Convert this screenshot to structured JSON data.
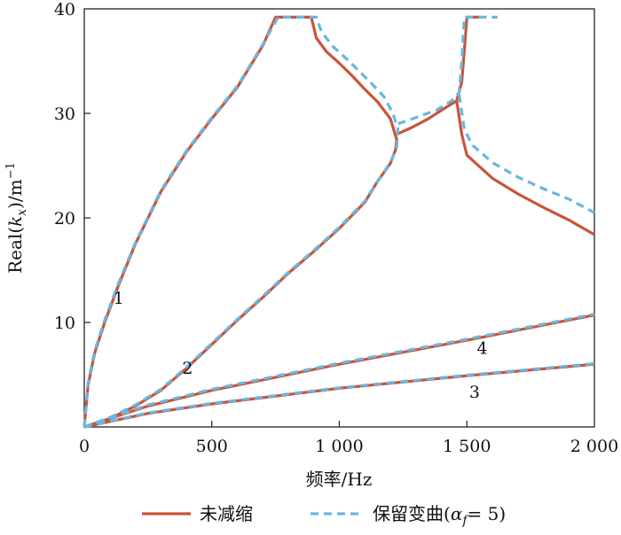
{
  "chart_data": {
    "type": "line",
    "xlabel": "频率/Hz",
    "ylabel_main": "Real(",
    "ylabel_k": "k",
    "ylabel_sub": "x",
    "ylabel_tail": ")/m",
    "ylabel_sup": "−1",
    "xlim": [
      0,
      2000
    ],
    "ylim": [
      0,
      40
    ],
    "xticks": [
      {
        "value": 0,
        "label": "0"
      },
      {
        "value": 500,
        "label": "500"
      },
      {
        "value": 1000,
        "label": "1 000"
      },
      {
        "value": 1500,
        "label": "1 500"
      },
      {
        "value": 2000,
        "label": "2 000"
      }
    ],
    "yticks": [
      {
        "value": 10,
        "label": "10"
      },
      {
        "value": 20,
        "label": "20"
      },
      {
        "value": 30,
        "label": "30"
      },
      {
        "value": 40,
        "label": "40"
      }
    ],
    "grid": false,
    "legend_position": "bottom",
    "legend": {
      "undamped": "未减缩",
      "retained_prefix": "保留变曲(",
      "retained_alpha": "α",
      "retained_sub": "f",
      "retained_suffix": "= 5)"
    },
    "colors": {
      "undamped": "#c8553a",
      "retained": "#6bb6df"
    },
    "curve_labels": [
      {
        "text": "1",
        "x": 135,
        "y": 11.8
      },
      {
        "text": "2",
        "x": 405,
        "y": 5.1
      },
      {
        "text": "4",
        "x": 1560,
        "y": 7.0
      },
      {
        "text": "3",
        "x": 1530,
        "y": 2.8
      }
    ],
    "series": [
      {
        "name": "未减缩",
        "curves": [
          [
            [
              0,
              0
            ],
            [
              15,
              4
            ],
            [
              40,
              7
            ],
            [
              80,
              10
            ],
            [
              130,
              13.3
            ],
            [
              200,
              17.5
            ],
            [
              300,
              22.5
            ],
            [
              400,
              26.3
            ],
            [
              500,
              29.5
            ],
            [
              600,
              32.5
            ],
            [
              700,
              36.5
            ],
            [
              750,
              39.2
            ],
            [
              890,
              39.2
            ],
            [
              910,
              37.2
            ],
            [
              950,
              35.9
            ],
            [
              1000,
              34.8
            ],
            [
              1050,
              33.6
            ],
            [
              1100,
              32.3
            ],
            [
              1150,
              31.1
            ],
            [
              1200,
              29.5
            ],
            [
              1225,
              27.5
            ],
            [
              1220,
              26.5
            ],
            [
              1200,
              25.2
            ],
            [
              1150,
              23.5
            ],
            [
              1100,
              21.5
            ],
            [
              1000,
              19.0
            ],
            [
              900,
              16.8
            ],
            [
              800,
              14.7
            ],
            [
              700,
              12.4
            ],
            [
              600,
              10.2
            ],
            [
              500,
              7.9
            ],
            [
              400,
              5.6
            ],
            [
              300,
              3.5
            ],
            [
              200,
              2.0
            ],
            [
              100,
              0.8
            ],
            [
              0,
              0
            ]
          ],
          [
            [
              1225,
              28.0
            ],
            [
              1280,
              28.6
            ],
            [
              1350,
              29.5
            ],
            [
              1420,
              30.6
            ],
            [
              1460,
              31.2
            ],
            [
              1480,
              33
            ],
            [
              1490,
              36
            ],
            [
              1500,
              39.2
            ],
            [
              1550,
              39.2
            ]
          ],
          [
            [
              1460,
              31.2
            ],
            [
              1480,
              28
            ],
            [
              1500,
              26
            ],
            [
              1600,
              23.8
            ],
            [
              1700,
              22.3
            ],
            [
              1800,
              21.0
            ],
            [
              1900,
              19.8
            ],
            [
              2000,
              18.4
            ]
          ],
          [
            [
              0,
              0
            ],
            [
              250,
              2.0
            ],
            [
              500,
              3.5
            ],
            [
              1000,
              6.0
            ],
            [
              1500,
              8.3
            ],
            [
              2000,
              10.7
            ]
          ],
          [
            [
              0,
              0
            ],
            [
              250,
              1.3
            ],
            [
              500,
              2.2
            ],
            [
              1000,
              3.7
            ],
            [
              1500,
              4.9
            ],
            [
              2000,
              6.0
            ]
          ]
        ]
      },
      {
        "name": "保留变曲",
        "curves": [
          [
            [
              0,
              0
            ],
            [
              15,
              4.2
            ],
            [
              40,
              7.2
            ],
            [
              80,
              10.2
            ],
            [
              130,
              13.5
            ],
            [
              200,
              17.6
            ],
            [
              300,
              22.6
            ],
            [
              400,
              26.4
            ],
            [
              500,
              29.6
            ],
            [
              600,
              32.6
            ],
            [
              700,
              36.6
            ],
            [
              760,
              39.2
            ],
            [
              910,
              39.2
            ],
            [
              930,
              37.8
            ],
            [
              975,
              36.4
            ],
            [
              1025,
              35.3
            ],
            [
              1075,
              34.1
            ],
            [
              1125,
              32.9
            ],
            [
              1175,
              31.6
            ],
            [
              1210,
              30.0
            ],
            [
              1230,
              28.5
            ],
            [
              1225,
              26.8
            ],
            [
              1200,
              25.3
            ],
            [
              1150,
              23.5
            ],
            [
              1100,
              21.6
            ],
            [
              1000,
              19.1
            ],
            [
              900,
              16.9
            ],
            [
              800,
              14.8
            ],
            [
              700,
              12.5
            ],
            [
              600,
              10.3
            ],
            [
              500,
              8.0
            ],
            [
              400,
              5.7
            ],
            [
              300,
              3.6
            ],
            [
              200,
              2.1
            ],
            [
              100,
              0.9
            ],
            [
              0,
              0
            ]
          ],
          [
            [
              1230,
              29.0
            ],
            [
              1300,
              29.6
            ],
            [
              1380,
              30.3
            ],
            [
              1440,
              31.2
            ],
            [
              1470,
              32
            ],
            [
              1480,
              35
            ],
            [
              1490,
              39.2
            ],
            [
              1620,
              39.2
            ]
          ],
          [
            [
              1470,
              31.8
            ],
            [
              1490,
              28.5
            ],
            [
              1520,
              27.0
            ],
            [
              1600,
              25.3
            ],
            [
              1700,
              23.9
            ],
            [
              1800,
              22.8
            ],
            [
              1900,
              21.8
            ],
            [
              2000,
              20.5
            ]
          ],
          [
            [
              0,
              0
            ],
            [
              250,
              2.1
            ],
            [
              500,
              3.6
            ],
            [
              1000,
              6.1
            ],
            [
              1500,
              8.4
            ],
            [
              2000,
              10.8
            ]
          ],
          [
            [
              0,
              0
            ],
            [
              250,
              1.35
            ],
            [
              500,
              2.25
            ],
            [
              1000,
              3.75
            ],
            [
              1500,
              4.95
            ],
            [
              2000,
              6.05
            ]
          ]
        ]
      }
    ]
  }
}
